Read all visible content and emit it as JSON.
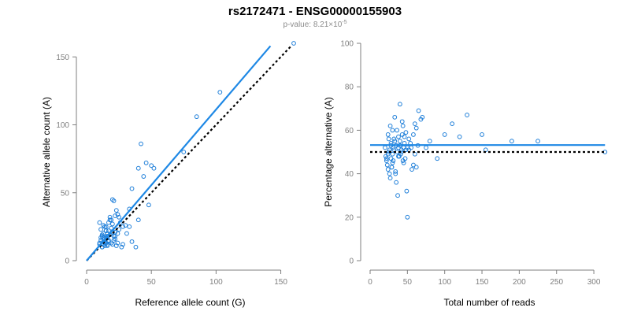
{
  "figure": {
    "title": "rs2172471 - ENSG00000155903",
    "subtitle_prefix": "p-value: 8.21×10",
    "subtitle_exponent": "-5"
  },
  "chart_data": [
    {
      "type": "scatter",
      "xlabel": "Reference allele count (G)",
      "ylabel": "Alternative allele count (A)",
      "xlim": [
        0,
        160
      ],
      "ylim": [
        0,
        160
      ],
      "xticks": [
        0,
        50,
        100,
        150
      ],
      "yticks": [
        0,
        50,
        100,
        150
      ],
      "grid": false,
      "fit_line": [
        [
          0,
          0
        ],
        [
          142,
          158
        ]
      ],
      "reference_line": [
        [
          0,
          0
        ],
        [
          158,
          158
        ]
      ],
      "x": [
        10,
        11,
        12,
        12,
        13,
        13,
        14,
        14,
        15,
        15,
        15,
        16,
        16,
        17,
        17,
        18,
        18,
        19,
        19,
        20,
        20,
        21,
        22,
        22,
        23,
        24,
        25,
        25,
        26,
        10,
        11,
        12,
        13,
        14,
        15,
        16,
        17,
        18,
        20,
        22,
        24,
        12,
        14,
        16,
        19,
        21,
        23,
        10,
        13,
        17,
        28,
        30,
        33,
        35,
        38,
        40,
        42,
        44,
        46,
        48,
        50,
        52,
        75,
        85,
        103,
        160,
        40,
        33,
        28,
        31,
        35,
        11,
        13,
        15,
        16,
        20,
        21,
        22,
        24,
        27
      ],
      "y": [
        12,
        15,
        10,
        18,
        14,
        20,
        11,
        16,
        13,
        22,
        25,
        12,
        17,
        15,
        28,
        19,
        30,
        24,
        13,
        45,
        21,
        44,
        16,
        18,
        37,
        20,
        32,
        23,
        28,
        28,
        23,
        19,
        26,
        25,
        17,
        20,
        14,
        32,
        27,
        33,
        34,
        10,
        13,
        11,
        30,
        18,
        11,
        13,
        17,
        22,
        25,
        26,
        38,
        53,
        10,
        68,
        86,
        62,
        72,
        41,
        70,
        68,
        80,
        106,
        124,
        160,
        30,
        25,
        12,
        20,
        14,
        17,
        12,
        22,
        18,
        12,
        15,
        21,
        13,
        10
      ]
    },
    {
      "type": "scatter",
      "xlabel": "Total number of reads",
      "ylabel": "Percentage alternative (A)",
      "xlim": [
        0,
        320
      ],
      "ylim": [
        0,
        100
      ],
      "xticks": [
        0,
        50,
        100,
        150,
        200,
        250,
        300
      ],
      "yticks": [
        0,
        20,
        40,
        60,
        80,
        100
      ],
      "grid": false,
      "fit_line": [
        [
          0,
          53.2
        ],
        [
          315,
          53.2
        ]
      ],
      "reference_line": [
        [
          0,
          50
        ],
        [
          315,
          50
        ]
      ],
      "x": [
        20,
        21,
        22,
        23,
        24,
        24,
        25,
        25,
        26,
        27,
        28,
        28,
        29,
        30,
        30,
        31,
        32,
        33,
        33,
        34,
        35,
        35,
        36,
        37,
        38,
        38,
        39,
        40,
        40,
        41,
        42,
        43,
        44,
        45,
        45,
        46,
        47,
        48,
        49,
        50,
        52,
        55,
        58,
        60,
        62,
        65,
        68,
        22,
        24,
        26,
        28,
        30,
        32,
        34,
        36,
        38,
        40,
        42,
        44,
        46,
        48,
        50,
        52,
        54,
        56,
        58,
        60,
        62,
        64,
        70,
        75,
        80,
        90,
        100,
        110,
        120,
        130,
        150,
        155,
        190,
        225,
        315,
        27,
        29,
        31,
        43
      ],
      "y": [
        52,
        48,
        46,
        44,
        58,
        42,
        50,
        56,
        40,
        62,
        47,
        54,
        43,
        49,
        60,
        46,
        51,
        66,
        55,
        40,
        36,
        53,
        50,
        30,
        52,
        57,
        48,
        72,
        55,
        49,
        51,
        58,
        62,
        45,
        52,
        54,
        47,
        51,
        32,
        20,
        56,
        52,
        44,
        63,
        43,
        69,
        65,
        47,
        49,
        51,
        53,
        45,
        56,
        41,
        60,
        48,
        53,
        50,
        46,
        57,
        59,
        52,
        51,
        54,
        42,
        58,
        49,
        61,
        53,
        66,
        52,
        55,
        47,
        58,
        63,
        57,
        67,
        58,
        51,
        55,
        55,
        50,
        38,
        43,
        52,
        64
      ]
    }
  ]
}
